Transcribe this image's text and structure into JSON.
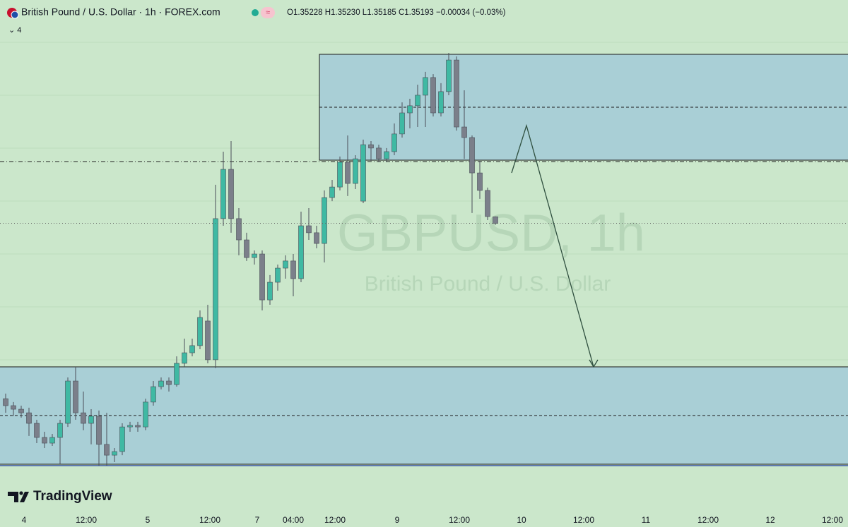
{
  "header": {
    "title": "British Pound / U.S. Dollar · 1h · FOREX.com",
    "badge": "≈",
    "ohlc": "O1.35228  H1.35230  L1.35185  C1.35193  −0.00034 (−0.03%)",
    "indicators": "⌄ 4"
  },
  "watermark": {
    "symbol": "GBPUSD, 1h",
    "name": "British Pound / U.S. Dollar"
  },
  "logo": "TradingView",
  "chart_data": {
    "type": "candlestick",
    "ylim": [
      1.33579,
      1.3638
    ],
    "up_color": "#3fb9a3",
    "down_color": "#7b7f8a",
    "wick_color": "#4a4e58",
    "price_line": true,
    "xticks": [
      "4",
      "12:00",
      "5",
      "12:00",
      "7",
      "04:00",
      "12:00",
      "9",
      "12:00",
      "10",
      "12:00",
      "11",
      "12:00",
      "12",
      "12:00"
    ],
    "ohlc": [
      [
        1.34261,
        1.34288,
        1.34186,
        1.34224
      ],
      [
        1.34224,
        1.34243,
        1.34168,
        1.34205
      ],
      [
        1.34205,
        1.34224,
        1.3416,
        1.34186
      ],
      [
        1.34186,
        1.34213,
        1.34063,
        1.3413
      ],
      [
        1.3413,
        1.34149,
        1.34025,
        1.34055
      ],
      [
        1.34055,
        1.34085,
        1.33999,
        1.34025
      ],
      [
        1.34025,
        1.34074,
        1.3401,
        1.34055
      ],
      [
        1.34055,
        1.34149,
        1.33913,
        1.3413
      ],
      [
        1.3413,
        1.34374,
        1.34111,
        1.34355
      ],
      [
        1.34355,
        1.3443,
        1.34149,
        1.34186
      ],
      [
        1.34186,
        1.34299,
        1.34093,
        1.3413
      ],
      [
        1.3413,
        1.34205,
        1.34018,
        1.34168
      ],
      [
        1.34168,
        1.34198,
        1.33905,
        1.34018
      ],
      [
        1.34018,
        1.34186,
        1.33905,
        1.33961
      ],
      [
        1.33961,
        1.33999,
        1.33924,
        1.3398
      ],
      [
        1.3398,
        1.3413,
        1.33961,
        1.34111
      ],
      [
        1.34111,
        1.34138,
        1.34085,
        1.34119
      ],
      [
        1.34119,
        1.34138,
        1.34085,
        1.34111
      ],
      [
        1.34111,
        1.34261,
        1.34093,
        1.34243
      ],
      [
        1.34243,
        1.34355,
        1.34224,
        1.34325
      ],
      [
        1.34325,
        1.34374,
        1.3431,
        1.34355
      ],
      [
        1.34355,
        1.34374,
        1.34299,
        1.34336
      ],
      [
        1.34336,
        1.34486,
        1.34325,
        1.34449
      ],
      [
        1.34449,
        1.3458,
        1.3443,
        1.34505
      ],
      [
        1.34505,
        1.3458,
        1.34486,
        1.34543
      ],
      [
        1.34543,
        1.3473,
        1.34524,
        1.34693
      ],
      [
        1.34674,
        1.3476,
        1.34449,
        1.34468
      ],
      [
        1.34468,
        1.35398,
        1.34423,
        1.35218
      ],
      [
        1.35218,
        1.35574,
        1.3518,
        1.3548
      ],
      [
        1.3548,
        1.3563,
        1.35143,
        1.35218
      ],
      [
        1.35218,
        1.35274,
        1.35023,
        1.35105
      ],
      [
        1.35105,
        1.35143,
        1.34993,
        1.35011
      ],
      [
        1.35011,
        1.35049,
        1.34974,
        1.3503
      ],
      [
        1.3503,
        1.35049,
        1.3473,
        1.34786
      ],
      [
        1.34786,
        1.34918,
        1.3476,
        1.3488
      ],
      [
        1.3488,
        1.34974,
        1.34835,
        1.34955
      ],
      [
        1.34955,
        1.35023,
        1.34899,
        1.34993
      ],
      [
        1.34993,
        1.3503,
        1.34805,
        1.34899
      ],
      [
        1.34899,
        1.35255,
        1.3488,
        1.3518
      ],
      [
        1.3518,
        1.35274,
        1.35105,
        1.35143
      ],
      [
        1.35143,
        1.3518,
        1.3506,
        1.35086
      ],
      [
        1.35086,
        1.35368,
        1.34985,
        1.3533
      ],
      [
        1.3533,
        1.35424,
        1.35311,
        1.35386
      ],
      [
        1.35386,
        1.35548,
        1.35368,
        1.35518
      ],
      [
        1.35518,
        1.3566,
        1.35338,
        1.35405
      ],
      [
        1.35405,
        1.35555,
        1.35375,
        1.35536
      ],
      [
        1.35311,
        1.35638,
        1.353,
        1.35611
      ],
      [
        1.35611,
        1.3563,
        1.35525,
        1.35593
      ],
      [
        1.35593,
        1.35611,
        1.35518,
        1.35536
      ],
      [
        1.35536,
        1.35593,
        1.35518,
        1.35574
      ],
      [
        1.35574,
        1.35724,
        1.35555,
        1.35668
      ],
      [
        1.35668,
        1.35836,
        1.35649,
        1.3578
      ],
      [
        1.3578,
        1.35855,
        1.35698,
        1.35818
      ],
      [
        1.35818,
        1.3593,
        1.35705,
        1.35874
      ],
      [
        1.35874,
        1.35998,
        1.35705,
        1.35968
      ],
      [
        1.35968,
        1.35986,
        1.35761,
        1.3578
      ],
      [
        1.3578,
        1.35938,
        1.35761,
        1.35893
      ],
      [
        1.35893,
        1.36099,
        1.35874,
        1.36061
      ],
      [
        1.36061,
        1.3608,
        1.35686,
        1.35705
      ],
      [
        1.35705,
        1.359,
        1.35536,
        1.35649
      ],
      [
        1.35649,
        1.3566,
        1.35248,
        1.35461
      ],
      [
        1.35461,
        1.35525,
        1.35323,
        1.35368
      ],
      [
        1.35368,
        1.35383,
        1.3521,
        1.35229
      ],
      [
        1.35228,
        1.3523,
        1.35185,
        1.35193
      ]
    ]
  }
}
